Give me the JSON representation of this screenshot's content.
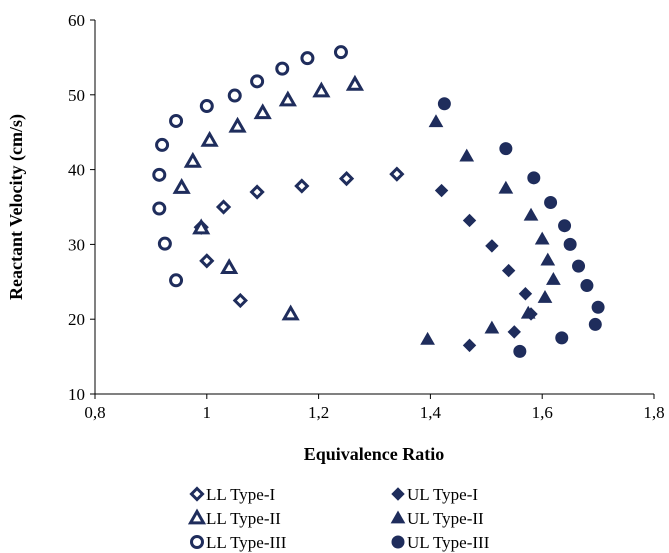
{
  "chart_data": {
    "type": "scatter",
    "title": "",
    "xlabel": "Equivalence Ratio",
    "ylabel": "Reactant Velocity (cm/s)",
    "xlim": [
      0.8,
      1.8
    ],
    "ylim": [
      10,
      60
    ],
    "xticks": [
      0.8,
      1.0,
      1.2,
      1.4,
      1.6,
      1.8
    ],
    "xtick_labels": [
      "0,8",
      "1",
      "1,2",
      "1,4",
      "1,6",
      "1,8"
    ],
    "yticks": [
      10,
      20,
      30,
      40,
      50,
      60
    ],
    "ytick_labels": [
      "10",
      "20",
      "30",
      "40",
      "50",
      "60"
    ],
    "grid": false,
    "legend_position": "bottom",
    "marker_color": "#1f2d5c",
    "series": [
      {
        "name": "LL Type-I",
        "marker": "diamond-open",
        "points": [
          [
            0.99,
            32.3
          ],
          [
            1.0,
            27.8
          ],
          [
            1.03,
            35.0
          ],
          [
            1.06,
            22.5
          ],
          [
            1.09,
            37.0
          ],
          [
            1.17,
            37.8
          ],
          [
            1.25,
            38.8
          ],
          [
            1.34,
            39.4
          ]
        ]
      },
      {
        "name": "UL Type-I",
        "marker": "diamond-filled",
        "points": [
          [
            1.42,
            37.2
          ],
          [
            1.47,
            33.2
          ],
          [
            1.47,
            16.5
          ],
          [
            1.51,
            29.8
          ],
          [
            1.54,
            26.5
          ],
          [
            1.55,
            18.3
          ],
          [
            1.57,
            23.4
          ],
          [
            1.58,
            20.7
          ]
        ]
      },
      {
        "name": "LL Type-II",
        "marker": "triangle-open",
        "points": [
          [
            0.955,
            37.6
          ],
          [
            0.975,
            41.1
          ],
          [
            0.99,
            32.2
          ],
          [
            1.005,
            43.9
          ],
          [
            1.04,
            26.9
          ],
          [
            1.055,
            45.8
          ],
          [
            1.1,
            47.6
          ],
          [
            1.145,
            49.3
          ],
          [
            1.15,
            20.7
          ],
          [
            1.205,
            50.5
          ],
          [
            1.265,
            51.4
          ]
        ]
      },
      {
        "name": "UL Type-II",
        "marker": "triangle-filled",
        "points": [
          [
            1.395,
            17.3
          ],
          [
            1.41,
            46.4
          ],
          [
            1.465,
            41.8
          ],
          [
            1.51,
            18.8
          ],
          [
            1.535,
            37.5
          ],
          [
            1.575,
            20.8
          ],
          [
            1.58,
            33.9
          ],
          [
            1.6,
            30.7
          ],
          [
            1.605,
            22.9
          ],
          [
            1.61,
            27.9
          ],
          [
            1.62,
            25.3
          ]
        ]
      },
      {
        "name": "LL Type-III",
        "marker": "circle-open",
        "points": [
          [
            0.915,
            34.8
          ],
          [
            0.915,
            39.3
          ],
          [
            0.92,
            43.3
          ],
          [
            0.925,
            30.1
          ],
          [
            0.945,
            25.2
          ],
          [
            0.945,
            46.5
          ],
          [
            1.0,
            48.5
          ],
          [
            1.05,
            49.9
          ],
          [
            1.09,
            51.8
          ],
          [
            1.135,
            53.5
          ],
          [
            1.18,
            54.9
          ],
          [
            1.24,
            55.7
          ]
        ]
      },
      {
        "name": "UL Type-III",
        "marker": "circle-filled",
        "points": [
          [
            1.425,
            48.8
          ],
          [
            1.535,
            42.8
          ],
          [
            1.56,
            15.7
          ],
          [
            1.585,
            38.9
          ],
          [
            1.615,
            35.6
          ],
          [
            1.635,
            17.5
          ],
          [
            1.64,
            32.5
          ],
          [
            1.65,
            30.0
          ],
          [
            1.665,
            27.1
          ],
          [
            1.68,
            24.5
          ],
          [
            1.695,
            19.3
          ],
          [
            1.7,
            21.6
          ]
        ]
      }
    ]
  }
}
